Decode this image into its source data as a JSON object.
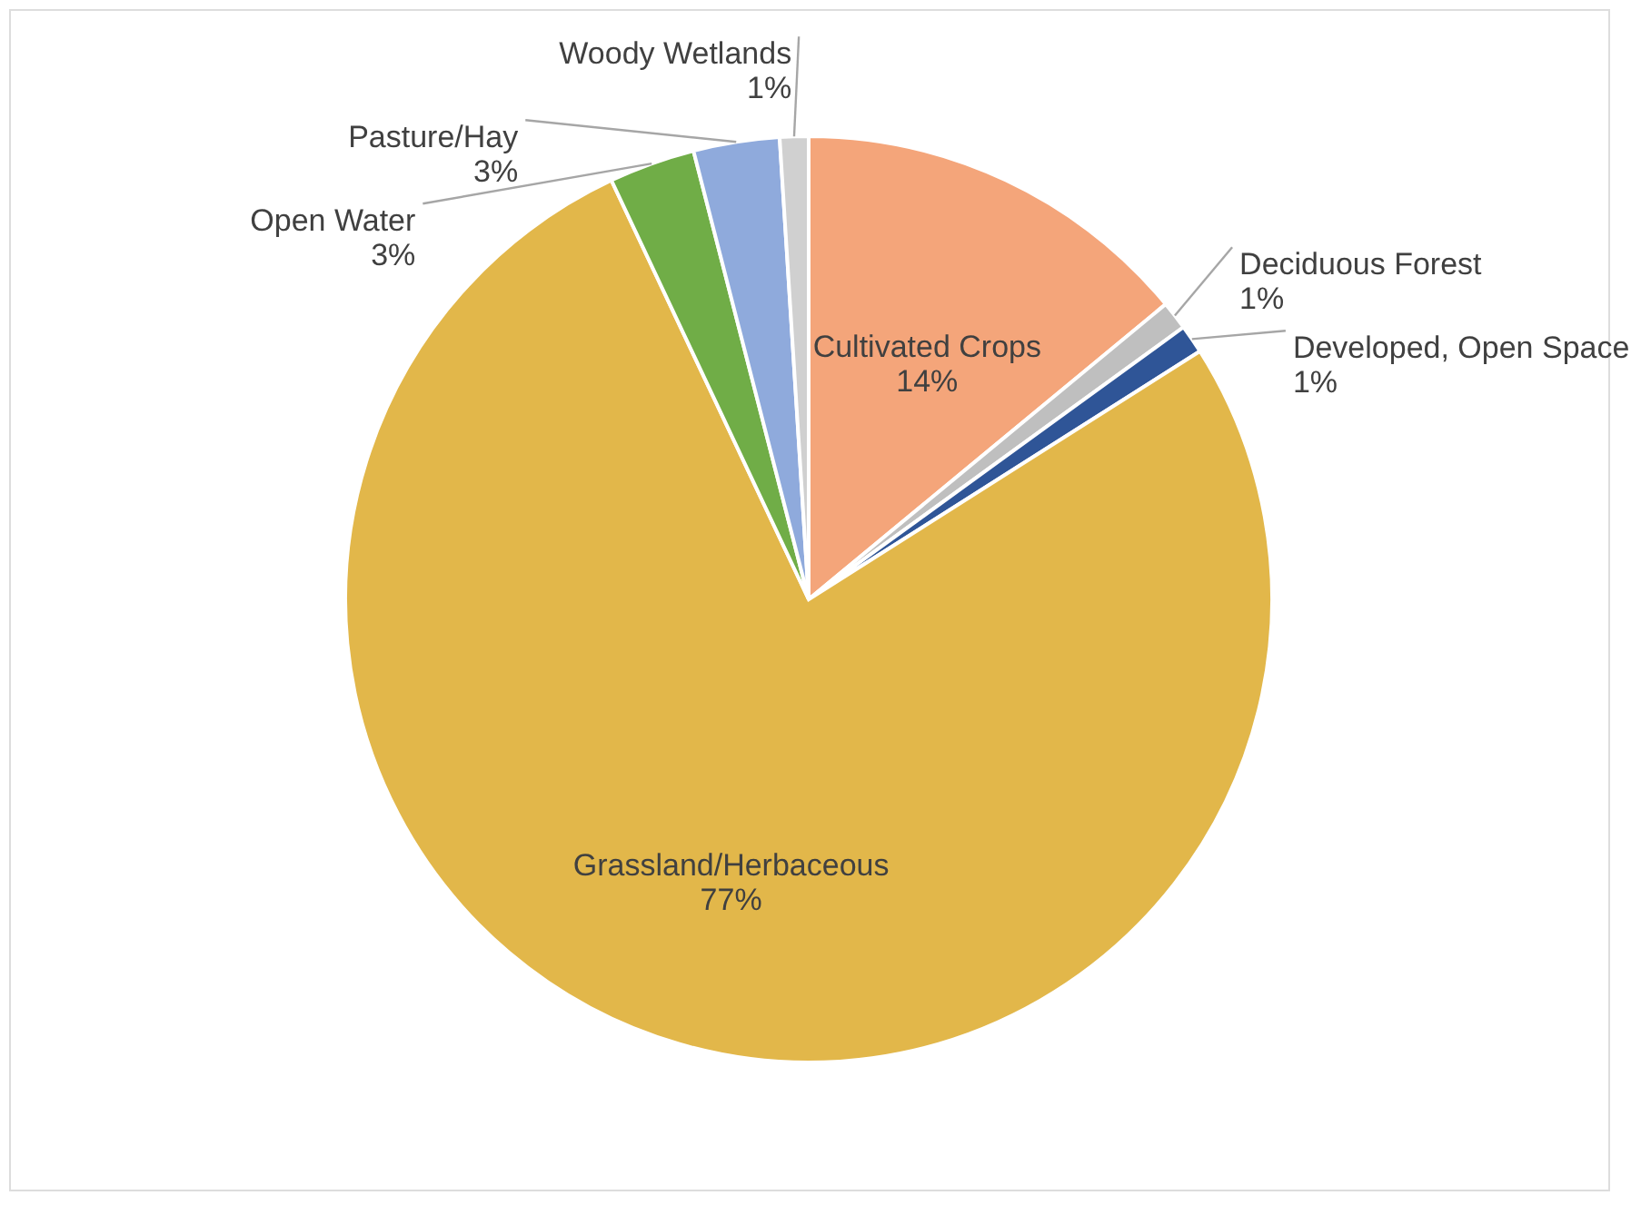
{
  "chart_data": {
    "type": "pie",
    "categories": [
      "Cultivated Crops",
      "Deciduous Forest",
      "Developed, Open Space",
      "Grassland/Herbaceous",
      "Open Water",
      "Pasture/Hay",
      "Woody Wetlands"
    ],
    "values": [
      14,
      1,
      1,
      77,
      3,
      3,
      1
    ],
    "value_labels": [
      "14%",
      "1%",
      "1%",
      "77%",
      "3%",
      "3%",
      "1%"
    ],
    "colors": [
      "#f4a57a",
      "#bfbfbf",
      "#2f5597",
      "#e2b74a",
      "#70ad47",
      "#8faadc",
      "#d0d0d0"
    ],
    "legend": false
  }
}
